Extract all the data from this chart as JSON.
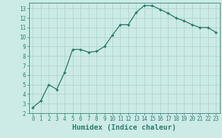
{
  "x": [
    0,
    1,
    2,
    3,
    4,
    5,
    6,
    7,
    8,
    9,
    10,
    11,
    12,
    13,
    14,
    15,
    16,
    17,
    18,
    19,
    20,
    21,
    22,
    23
  ],
  "y": [
    2.6,
    3.3,
    5.0,
    4.5,
    6.3,
    8.7,
    8.7,
    8.4,
    8.5,
    9.0,
    10.2,
    11.3,
    11.3,
    12.6,
    13.3,
    13.3,
    12.9,
    12.5,
    12.0,
    11.7,
    11.3,
    11.0,
    11.0,
    10.5
  ],
  "line_color": "#2e7d6e",
  "marker": "D",
  "marker_size": 2.0,
  "line_width": 1.0,
  "bg_color": "#cceae6",
  "grid_color": "#add4ce",
  "xlabel": "Humidex (Indice chaleur)",
  "xlim": [
    -0.5,
    23.5
  ],
  "ylim": [
    2,
    13.6
  ],
  "yticks": [
    2,
    3,
    4,
    5,
    6,
    7,
    8,
    9,
    10,
    11,
    12,
    13
  ],
  "xticks": [
    0,
    1,
    2,
    3,
    4,
    5,
    6,
    7,
    8,
    9,
    10,
    11,
    12,
    13,
    14,
    15,
    16,
    17,
    18,
    19,
    20,
    21,
    22,
    23
  ],
  "tick_fontsize": 5.5,
  "xlabel_fontsize": 7.5,
  "xlabel_fontweight": "bold"
}
